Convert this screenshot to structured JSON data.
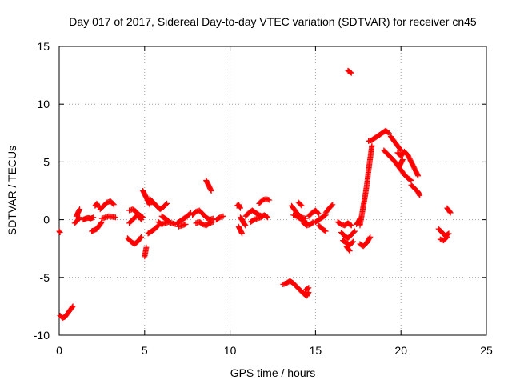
{
  "chart_data": {
    "type": "scatter",
    "title": "Day 017 of 2017, Sidereal Day-to-day VTEC variation (SDTVAR) for receiver cn45",
    "xlabel": "GPS time / hours",
    "ylabel": "SDTVAR / TECUs",
    "xlim": [
      0,
      25
    ],
    "ylim": [
      -10,
      15
    ],
    "xticks": [
      "0",
      "5",
      "10",
      "15",
      "20",
      "25"
    ],
    "yticks": [
      "-10",
      "-5",
      "0",
      "5",
      "10",
      "15"
    ],
    "grid": true,
    "marker": "plus",
    "series_color": "#ff0000",
    "series": [
      {
        "name": "seg1",
        "x": [
          0.0,
          0.05
        ],
        "y": [
          -1.0,
          -1.1
        ]
      },
      {
        "name": "seg2",
        "x": [
          0.05,
          0.2,
          0.35,
          0.5,
          0.65,
          0.8
        ],
        "y": [
          -8.3,
          -8.5,
          -8.4,
          -8.1,
          -7.8,
          -7.5
        ]
      },
      {
        "name": "seg3",
        "x": [
          0.9,
          1.05,
          1.2
        ],
        "y": [
          -0.3,
          -0.1,
          0.2
        ]
      },
      {
        "name": "seg4",
        "x": [
          1.0,
          1.1,
          1.2
        ],
        "y": [
          0.3,
          0.6,
          0.9
        ]
      },
      {
        "name": "seg5",
        "x": [
          1.4,
          1.55,
          1.7,
          1.85,
          2.0
        ],
        "y": [
          0.0,
          0.1,
          0.15,
          0.1,
          0.2
        ]
      },
      {
        "name": "seg6",
        "x": [
          1.9,
          2.05,
          2.2,
          2.35,
          2.5
        ],
        "y": [
          -1.0,
          -0.9,
          -0.8,
          -0.5,
          -0.2
        ]
      },
      {
        "name": "seg7",
        "x": [
          2.1,
          2.2,
          2.3
        ],
        "y": [
          1.2,
          1.4,
          1.1
        ]
      },
      {
        "name": "seg8",
        "x": [
          2.4,
          2.6,
          2.8,
          3.0,
          3.2
        ],
        "y": [
          0.9,
          1.2,
          1.5,
          1.6,
          1.3
        ]
      },
      {
        "name": "seg9",
        "x": [
          2.5,
          2.7,
          2.9,
          3.1,
          3.3
        ],
        "y": [
          0.1,
          0.2,
          0.3,
          0.25,
          0.2
        ]
      },
      {
        "name": "seg10",
        "x": [
          4.1,
          4.3,
          4.5,
          4.7,
          4.8
        ],
        "y": [
          0.8,
          0.9,
          0.7,
          0.3,
          0.0
        ]
      },
      {
        "name": "seg11",
        "x": [
          4.1,
          4.3,
          4.5,
          4.7,
          4.9
        ],
        "y": [
          -0.3,
          0.0,
          0.3,
          0.4,
          0.2
        ]
      },
      {
        "name": "seg12",
        "x": [
          4.0,
          4.2,
          4.4,
          4.6,
          4.8
        ],
        "y": [
          -1.6,
          -1.9,
          -2.1,
          -1.9,
          -1.5
        ]
      },
      {
        "name": "seg13",
        "x": [
          4.9,
          5.0,
          5.1,
          5.2,
          5.3
        ],
        "y": [
          2.5,
          2.2,
          1.9,
          1.6,
          1.3
        ]
      },
      {
        "name": "seg14",
        "x": [
          5.0,
          5.05,
          5.1
        ],
        "y": [
          -3.2,
          -2.8,
          -2.4
        ]
      },
      {
        "name": "seg15",
        "x": [
          5.2,
          5.4,
          5.6,
          5.8
        ],
        "y": [
          -1.2,
          -1.0,
          -0.8,
          -0.5
        ]
      },
      {
        "name": "seg16",
        "x": [
          5.3,
          5.5,
          5.7,
          5.9,
          6.1,
          6.3
        ],
        "y": [
          1.8,
          1.5,
          1.2,
          0.9,
          1.1,
          1.4
        ]
      },
      {
        "name": "seg17",
        "x": [
          5.8,
          6.0,
          6.2,
          6.4,
          6.6,
          6.8
        ],
        "y": [
          -0.2,
          -0.4,
          -0.3,
          -0.2,
          -0.3,
          -0.4
        ]
      },
      {
        "name": "seg18",
        "x": [
          6.0,
          6.2,
          6.4
        ],
        "y": [
          0.3,
          0.1,
          -0.1
        ]
      },
      {
        "name": "seg19",
        "x": [
          6.9,
          7.1,
          7.3,
          7.5,
          7.7
        ],
        "y": [
          -0.3,
          -0.1,
          0.1,
          0.3,
          0.6
        ]
      },
      {
        "name": "seg20",
        "x": [
          7.0,
          7.2,
          7.4
        ],
        "y": [
          -0.6,
          -0.5,
          -0.4
        ]
      },
      {
        "name": "seg21",
        "x": [
          7.8,
          8.0,
          8.2,
          8.4,
          8.6,
          8.8,
          9.0
        ],
        "y": [
          0.4,
          0.7,
          0.8,
          0.5,
          0.2,
          0.0,
          0.1
        ]
      },
      {
        "name": "seg22",
        "x": [
          8.0,
          8.2,
          8.4,
          8.6,
          8.8,
          9.0
        ],
        "y": [
          -0.3,
          -0.2,
          -0.4,
          -0.5,
          -0.3,
          -0.2
        ]
      },
      {
        "name": "seg23",
        "x": [
          8.6,
          8.7,
          8.8,
          8.9
        ],
        "y": [
          3.4,
          3.1,
          2.8,
          2.5
        ]
      },
      {
        "name": "seg24",
        "x": [
          9.2,
          9.4,
          9.6
        ],
        "y": [
          0.0,
          0.2,
          0.3
        ]
      },
      {
        "name": "seg25",
        "x": [
          10.4,
          10.5,
          10.6
        ],
        "y": [
          1.2,
          1.3,
          1.0
        ]
      },
      {
        "name": "seg26",
        "x": [
          10.6,
          10.7,
          10.8,
          10.9
        ],
        "y": [
          0.2,
          0.0,
          -0.3,
          -0.5
        ]
      },
      {
        "name": "seg27",
        "x": [
          10.5,
          10.6,
          10.7
        ],
        "y": [
          -0.6,
          -0.9,
          -1.2
        ]
      },
      {
        "name": "seg28",
        "x": [
          10.9,
          11.1,
          11.3,
          11.5,
          11.7,
          11.9
        ],
        "y": [
          0.3,
          0.6,
          0.8,
          0.6,
          0.4,
          0.3
        ]
      },
      {
        "name": "seg29",
        "x": [
          11.2,
          11.4,
          11.6,
          11.8,
          12.0,
          12.2
        ],
        "y": [
          -0.2,
          0.0,
          0.1,
          0.2,
          0.4,
          0.2
        ]
      },
      {
        "name": "seg30",
        "x": [
          11.7,
          11.9,
          12.1,
          12.3
        ],
        "y": [
          1.4,
          1.7,
          1.8,
          1.7
        ]
      },
      {
        "name": "seg31",
        "x": [
          13.1,
          13.3,
          13.5,
          13.7,
          13.9,
          14.1,
          14.3,
          14.5,
          14.6
        ],
        "y": [
          -5.6,
          -5.5,
          -5.3,
          -5.5,
          -5.8,
          -6.1,
          -6.4,
          -6.6,
          -6.3
        ]
      },
      {
        "name": "seg32",
        "x": [
          14.4,
          14.6
        ],
        "y": [
          -6.1,
          -5.9
        ]
      },
      {
        "name": "seg33",
        "x": [
          13.6,
          13.8,
          14.0,
          14.2,
          14.4
        ],
        "y": [
          1.2,
          0.8,
          0.4,
          0.2,
          0.1
        ]
      },
      {
        "name": "seg34",
        "x": [
          13.7,
          13.9,
          14.1,
          14.3,
          14.5
        ],
        "y": [
          0.4,
          0.3,
          0.1,
          -0.1,
          -0.3
        ]
      },
      {
        "name": "seg35",
        "x": [
          14.0,
          14.2
        ],
        "y": [
          1.5,
          1.2
        ]
      },
      {
        "name": "seg36",
        "x": [
          14.3,
          14.5,
          14.7,
          14.9
        ],
        "y": [
          -0.3,
          -0.5,
          -0.4,
          -0.2
        ]
      },
      {
        "name": "seg37",
        "x": [
          14.6,
          14.8,
          15.0,
          15.2
        ],
        "y": [
          0.3,
          0.6,
          0.8,
          0.5
        ]
      },
      {
        "name": "seg38",
        "x": [
          15.0,
          15.2,
          15.4,
          15.6
        ],
        "y": [
          -0.2,
          0.0,
          0.2,
          0.4
        ]
      },
      {
        "name": "seg39",
        "x": [
          15.2,
          15.4,
          15.6
        ],
        "y": [
          -0.5,
          -0.8,
          -1.0
        ]
      },
      {
        "name": "seg40",
        "x": [
          15.6,
          15.8,
          16.0
        ],
        "y": [
          0.6,
          1.0,
          1.3
        ]
      },
      {
        "name": "seg41",
        "x": [
          16.3,
          16.5,
          16.7,
          16.9,
          17.1
        ],
        "y": [
          -0.2,
          -0.4,
          -0.5,
          -0.3,
          -0.5
        ]
      },
      {
        "name": "seg42",
        "x": [
          16.5,
          16.7,
          16.9,
          17.1,
          17.3
        ],
        "y": [
          -1.1,
          -1.4,
          -1.6,
          -1.3,
          -1.0
        ]
      },
      {
        "name": "seg43",
        "x": [
          16.6,
          16.8,
          17.0,
          17.2
        ],
        "y": [
          -1.8,
          -2.0,
          -2.2,
          -1.9
        ]
      },
      {
        "name": "seg44",
        "x": [
          16.8,
          16.9,
          17.0
        ],
        "y": [
          -2.3,
          -2.5,
          -2.7
        ]
      },
      {
        "name": "seg45",
        "x": [
          16.9,
          17.0,
          17.1
        ],
        "y": [
          12.9,
          12.8,
          12.7
        ]
      },
      {
        "name": "seg46",
        "x": [
          17.6,
          17.7,
          17.8,
          17.9,
          18.0,
          18.1,
          18.2,
          18.3
        ],
        "y": [
          -0.5,
          0.3,
          1.2,
          2.0,
          3.0,
          4.2,
          5.3,
          6.4
        ]
      },
      {
        "name": "seg47",
        "x": [
          18.1,
          18.3,
          18.5,
          18.7,
          18.9,
          19.1,
          19.3
        ],
        "y": [
          6.8,
          6.9,
          7.1,
          7.3,
          7.5,
          7.7,
          7.5
        ]
      },
      {
        "name": "seg48",
        "x": [
          17.4,
          17.5,
          17.6
        ],
        "y": [
          -0.4,
          -0.2,
          0.1
        ]
      },
      {
        "name": "seg49",
        "x": [
          17.6,
          17.8,
          18.0,
          18.2
        ],
        "y": [
          -2.1,
          -2.3,
          -2.0,
          -1.5
        ]
      },
      {
        "name": "seg50",
        "x": [
          19.0,
          19.2,
          19.4,
          19.6,
          19.8,
          20.0,
          20.2,
          20.4,
          20.6
        ],
        "y": [
          6.0,
          5.7,
          5.4,
          5.1,
          4.7,
          4.3,
          3.9,
          3.6,
          3.4
        ]
      },
      {
        "name": "seg51",
        "x": [
          19.4,
          19.6,
          19.8,
          20.0
        ],
        "y": [
          7.2,
          6.8,
          6.4,
          6.0
        ]
      },
      {
        "name": "seg52",
        "x": [
          19.8,
          20.0,
          20.2,
          20.4,
          20.6,
          20.8,
          21.0
        ],
        "y": [
          5.8,
          5.5,
          5.9,
          5.6,
          5.0,
          4.4,
          3.8
        ]
      },
      {
        "name": "seg53",
        "x": [
          19.9,
          20.0,
          20.1
        ],
        "y": [
          4.6,
          4.9,
          5.2
        ]
      },
      {
        "name": "seg54",
        "x": [
          20.6,
          20.8,
          21.0,
          21.1
        ],
        "y": [
          3.0,
          2.7,
          2.4,
          2.1
        ]
      },
      {
        "name": "seg55",
        "x": [
          22.2,
          22.4,
          22.6,
          22.8
        ],
        "y": [
          -0.8,
          -1.1,
          -1.4,
          -1.2
        ]
      },
      {
        "name": "seg56",
        "x": [
          22.3,
          22.5,
          22.7
        ],
        "y": [
          -1.7,
          -1.8,
          -1.5
        ]
      },
      {
        "name": "seg57",
        "x": [
          22.7,
          22.8,
          22.9
        ],
        "y": [
          1.0,
          0.8,
          0.6
        ]
      }
    ]
  }
}
